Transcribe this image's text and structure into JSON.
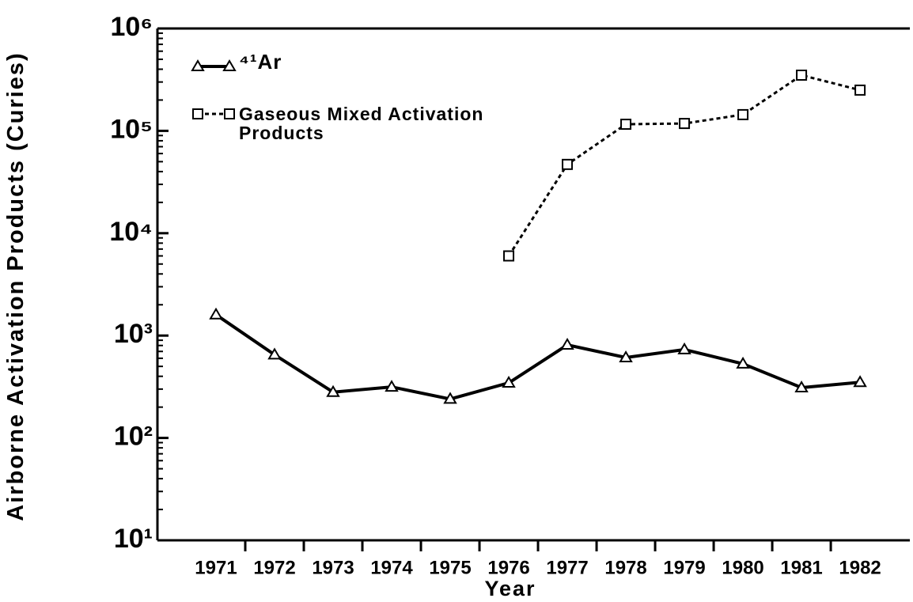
{
  "chart_data": {
    "type": "line",
    "xlabel": "Year",
    "ylabel": "Airborne Activation Products (Curies)",
    "x": [
      1971,
      1972,
      1973,
      1974,
      1975,
      1976,
      1977,
      1978,
      1979,
      1980,
      1981,
      1982
    ],
    "xlim": [
      1970,
      1982.85
    ],
    "xticks": [
      1971,
      1972,
      1973,
      1974,
      1975,
      1976,
      1977,
      1978,
      1979,
      1980,
      1981,
      1982
    ],
    "ylim": [
      10,
      1000000
    ],
    "yscale": "log",
    "yticks": [
      {
        "value": 10,
        "label": "10¹"
      },
      {
        "value": 100,
        "label": "10²"
      },
      {
        "value": 1000,
        "label": "10³"
      },
      {
        "value": 10000,
        "label": "10⁴"
      },
      {
        "value": 100000,
        "label": "10⁵"
      },
      {
        "value": 1000000,
        "label": "10⁶"
      }
    ],
    "legend": "upper left",
    "series": [
      {
        "name": "⁴¹Ar",
        "color": "#000000",
        "marker": "triangle",
        "linestyle": "solid",
        "values": [
          1600,
          650,
          280,
          315,
          240,
          345,
          810,
          610,
          730,
          530,
          310,
          350
        ]
      },
      {
        "name": "Gaseous Mixed Activation Products",
        "color": "#000000",
        "marker": "square",
        "linestyle": "dotted",
        "values": [
          null,
          null,
          null,
          null,
          null,
          6000,
          47000,
          116000,
          118000,
          144000,
          350000,
          250000
        ]
      }
    ]
  }
}
